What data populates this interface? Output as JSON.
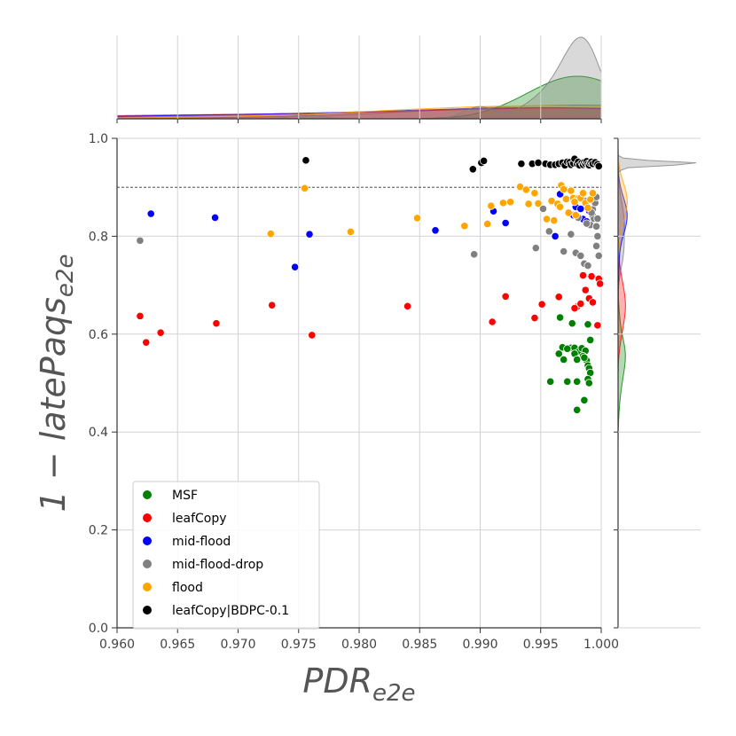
{
  "chart_data": {
    "type": "scatter",
    "xlabel": "PDR",
    "xlabel_sub": "e2e",
    "ylabel": "1 − latePaqs",
    "ylabel_sub": "e2e",
    "xlim": [
      0.96,
      1.0
    ],
    "ylim": [
      0.0,
      1.0
    ],
    "x_ticks": [
      "0.960",
      "0.965",
      "0.970",
      "0.975",
      "0.980",
      "0.985",
      "0.990",
      "0.995",
      "1.000"
    ],
    "y_ticks": [
      "0.0",
      "0.2",
      "0.4",
      "0.6",
      "0.8",
      "1.0"
    ],
    "grid": true,
    "reference_line_y": 0.9,
    "legend_position": "lower-left",
    "marginals": "kde density on top (x) and right (y) axes",
    "series": [
      {
        "name": "MSF",
        "color": "#008000",
        "points": [
          [
            0.9966,
            0.634
          ],
          [
            0.9975,
            0.572
          ],
          [
            0.9968,
            0.573
          ],
          [
            0.9972,
            0.57
          ],
          [
            0.9978,
            0.572
          ],
          [
            0.9982,
            0.565
          ],
          [
            0.9984,
            0.571
          ],
          [
            0.9987,
            0.566
          ],
          [
            0.9965,
            0.56
          ],
          [
            0.9978,
            0.56
          ],
          [
            0.9985,
            0.555
          ],
          [
            0.9988,
            0.546
          ],
          [
            0.9969,
            0.548
          ],
          [
            0.998,
            0.548
          ],
          [
            0.9986,
            0.552
          ],
          [
            0.9989,
            0.536
          ],
          [
            0.999,
            0.53
          ],
          [
            0.9991,
            0.521
          ],
          [
            0.9989,
            0.508
          ],
          [
            0.999,
            0.5
          ],
          [
            0.9958,
            0.503
          ],
          [
            0.9972,
            0.503
          ],
          [
            0.998,
            0.503
          ],
          [
            0.9986,
            0.465
          ],
          [
            0.998,
            0.445
          ],
          [
            0.9989,
            0.62
          ],
          [
            0.9976,
            0.622
          ],
          [
            0.9991,
            0.588
          ]
        ]
      },
      {
        "name": "leafCopy",
        "color": "#ff0000",
        "points": [
          [
            0.9619,
            0.637
          ],
          [
            0.9624,
            0.583
          ],
          [
            0.9636,
            0.603
          ],
          [
            0.9682,
            0.622
          ],
          [
            0.9728,
            0.659
          ],
          [
            0.9761,
            0.598
          ],
          [
            0.984,
            0.657
          ],
          [
            0.991,
            0.625
          ],
          [
            0.9921,
            0.677
          ],
          [
            0.9945,
            0.633
          ],
          [
            0.9951,
            0.661
          ],
          [
            0.9965,
            0.676
          ],
          [
            0.998,
            0.656
          ],
          [
            0.9983,
            0.662
          ],
          [
            0.9987,
            0.69
          ],
          [
            0.999,
            0.673
          ],
          [
            0.9993,
            0.665
          ],
          [
            0.9997,
            0.618
          ],
          [
            0.9985,
            0.72
          ],
          [
            0.9992,
            0.718
          ],
          [
            0.9998,
            0.713
          ],
          [
            0.9999,
            0.703
          ],
          [
            0.9978,
            0.653
          ]
        ]
      },
      {
        "name": "mid-flood",
        "color": "#0000ff",
        "points": [
          [
            0.9628,
            0.846
          ],
          [
            0.9681,
            0.838
          ],
          [
            0.9747,
            0.737
          ],
          [
            0.9759,
            0.804
          ],
          [
            0.9863,
            0.812
          ],
          [
            0.9911,
            0.851
          ],
          [
            0.9921,
            0.827
          ],
          [
            0.9962,
            0.8
          ],
          [
            0.9966,
            0.886
          ],
          [
            0.9979,
            0.86
          ],
          [
            0.9983,
            0.856
          ],
          [
            0.9985,
            0.835
          ],
          [
            0.9987,
            0.871
          ],
          [
            0.999,
            0.852
          ],
          [
            0.9993,
            0.842
          ],
          [
            0.9988,
            0.83
          ],
          [
            0.9977,
            0.843
          ]
        ]
      },
      {
        "name": "mid-flood-drop",
        "color": "#808080",
        "points": [
          [
            0.9619,
            0.791
          ],
          [
            0.9895,
            0.763
          ],
          [
            0.9946,
            0.776
          ],
          [
            0.9952,
            0.856
          ],
          [
            0.9957,
            0.81
          ],
          [
            0.9969,
            0.769
          ],
          [
            0.9975,
            0.804
          ],
          [
            0.9979,
            0.766
          ],
          [
            0.9981,
            0.838
          ],
          [
            0.9983,
            0.76
          ],
          [
            0.9986,
            0.744
          ],
          [
            0.9989,
            0.74
          ],
          [
            0.9991,
            0.823
          ],
          [
            0.9993,
            0.855
          ],
          [
            0.9994,
            0.836
          ],
          [
            0.9995,
            0.868
          ],
          [
            0.9996,
            0.88
          ],
          [
            0.9997,
            0.8
          ],
          [
            0.9996,
            0.78
          ],
          [
            0.9998,
            0.76
          ],
          [
            0.9992,
            0.848
          ],
          [
            0.9988,
            0.826
          ],
          [
            0.9996,
            0.82
          ],
          [
            0.9997,
            0.836
          ]
        ]
      },
      {
        "name": "flood",
        "color": "#ffa500",
        "points": [
          [
            0.9727,
            0.805
          ],
          [
            0.9755,
            0.898
          ],
          [
            0.9793,
            0.809
          ],
          [
            0.9848,
            0.837
          ],
          [
            0.9887,
            0.821
          ],
          [
            0.9906,
            0.825
          ],
          [
            0.9909,
            0.862
          ],
          [
            0.9919,
            0.868
          ],
          [
            0.9925,
            0.87
          ],
          [
            0.9933,
            0.901
          ],
          [
            0.9938,
            0.895
          ],
          [
            0.994,
            0.866
          ],
          [
            0.9945,
            0.888
          ],
          [
            0.9948,
            0.867
          ],
          [
            0.9955,
            0.835
          ],
          [
            0.9959,
            0.872
          ],
          [
            0.9961,
            0.832
          ],
          [
            0.9964,
            0.866
          ],
          [
            0.9967,
            0.904
          ],
          [
            0.9969,
            0.896
          ],
          [
            0.9971,
            0.876
          ],
          [
            0.9973,
            0.848
          ],
          [
            0.9975,
            0.893
          ],
          [
            0.9977,
            0.878
          ],
          [
            0.9979,
            0.843
          ],
          [
            0.9981,
            0.877
          ],
          [
            0.9983,
            0.878
          ],
          [
            0.9985,
            0.888
          ],
          [
            0.9987,
            0.868
          ],
          [
            0.9989,
            0.858
          ],
          [
            0.9991,
            0.875
          ],
          [
            0.9993,
            0.888
          ],
          [
            0.9978,
            0.87
          ],
          [
            0.9966,
            0.86
          ]
        ]
      },
      {
        "name": "leafCopy|BDPC-0.1",
        "color": "#000000",
        "points": [
          [
            0.9756,
            0.955
          ],
          [
            0.9894,
            0.937
          ],
          [
            0.9901,
            0.95
          ],
          [
            0.9903,
            0.954
          ],
          [
            0.9934,
            0.948
          ],
          [
            0.9943,
            0.948
          ],
          [
            0.9948,
            0.95
          ],
          [
            0.9954,
            0.948
          ],
          [
            0.9958,
            0.946
          ],
          [
            0.9962,
            0.946
          ],
          [
            0.9965,
            0.948
          ],
          [
            0.9968,
            0.95
          ],
          [
            0.997,
            0.945
          ],
          [
            0.9972,
            0.952
          ],
          [
            0.9974,
            0.951
          ],
          [
            0.9975,
            0.946
          ],
          [
            0.9977,
            0.949
          ],
          [
            0.9978,
            0.958
          ],
          [
            0.998,
            0.948
          ],
          [
            0.9981,
            0.952
          ],
          [
            0.9982,
            0.945
          ],
          [
            0.9984,
            0.95
          ],
          [
            0.9985,
            0.946
          ],
          [
            0.9986,
            0.951
          ],
          [
            0.9987,
            0.948
          ],
          [
            0.9988,
            0.953
          ],
          [
            0.9989,
            0.948
          ],
          [
            0.999,
            0.945
          ],
          [
            0.9991,
            0.95
          ],
          [
            0.9992,
            0.952
          ],
          [
            0.9993,
            0.948
          ],
          [
            0.9995,
            0.951
          ],
          [
            0.9997,
            0.947
          ],
          [
            0.9998,
            0.943
          ]
        ]
      }
    ]
  }
}
